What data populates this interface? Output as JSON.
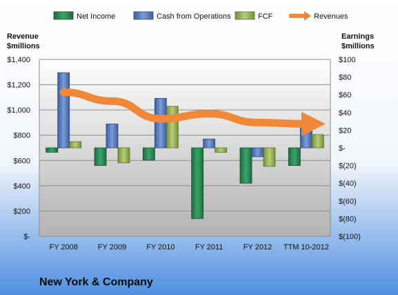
{
  "chart_data": {
    "type": "bar",
    "categories": [
      "FY 2008",
      "FY 2009",
      "FY 2010",
      "FY 2011",
      "FY 2012",
      "TTM 10-2012"
    ],
    "series": [
      {
        "name": "Net Income",
        "axis": "right",
        "color": "#2e8b57",
        "values": [
          -5,
          -20,
          -14,
          -80,
          -40,
          -20
        ]
      },
      {
        "name": "Cash from Operations",
        "axis": "right",
        "color": "#5b7fbf",
        "values": [
          85,
          27,
          56,
          10,
          -10,
          31
        ]
      },
      {
        "name": "FCF",
        "axis": "right",
        "color": "#9bbb59",
        "values": [
          7,
          -17,
          47,
          -5,
          -21,
          15
        ]
      },
      {
        "name": "Revenues",
        "axis": "left",
        "type": "line",
        "color": "#f0883a",
        "values": [
          1140,
          1070,
          930,
          970,
          900,
          890
        ]
      }
    ],
    "left_axis": {
      "title_line1": "Revenue",
      "title_line2": "$millions",
      "ylim": [
        0,
        1400
      ],
      "ticks": [
        {
          "value": 1400,
          "label": "$1,400"
        },
        {
          "value": 1200,
          "label": "$1,200"
        },
        {
          "value": 1000,
          "label": "$1,000"
        },
        {
          "value": 800,
          "label": "$800"
        },
        {
          "value": 600,
          "label": "$600"
        },
        {
          "value": 400,
          "label": "$400"
        },
        {
          "value": 200,
          "label": "$200"
        },
        {
          "value": 0,
          "label": "$-"
        }
      ]
    },
    "right_axis": {
      "title_line1": "Earnings",
      "title_line2": "$millions",
      "ylim": [
        -100,
        100
      ],
      "ticks": [
        {
          "value": 100,
          "label": "$100"
        },
        {
          "value": 80,
          "label": "$80"
        },
        {
          "value": 60,
          "label": "$60"
        },
        {
          "value": 40,
          "label": "$40"
        },
        {
          "value": 20,
          "label": "$20"
        },
        {
          "value": 0,
          "label": "$-"
        },
        {
          "value": -20,
          "label": "$(20)"
        },
        {
          "value": -40,
          "label": "$(40)"
        },
        {
          "value": -60,
          "label": "$(60)"
        },
        {
          "value": -80,
          "label": "$(80)"
        },
        {
          "value": -100,
          "label": "$(100)"
        }
      ]
    },
    "grid": true,
    "legend_position": "top"
  },
  "company_name": "New York & Company",
  "colors": {
    "plot_background_top": "#ffffff",
    "plot_background_bottom": "#b8b8b8",
    "page_background_top": "#ffffff",
    "page_background_bottom": "#4f8fe0",
    "gridline": "#8c8c8c"
  }
}
